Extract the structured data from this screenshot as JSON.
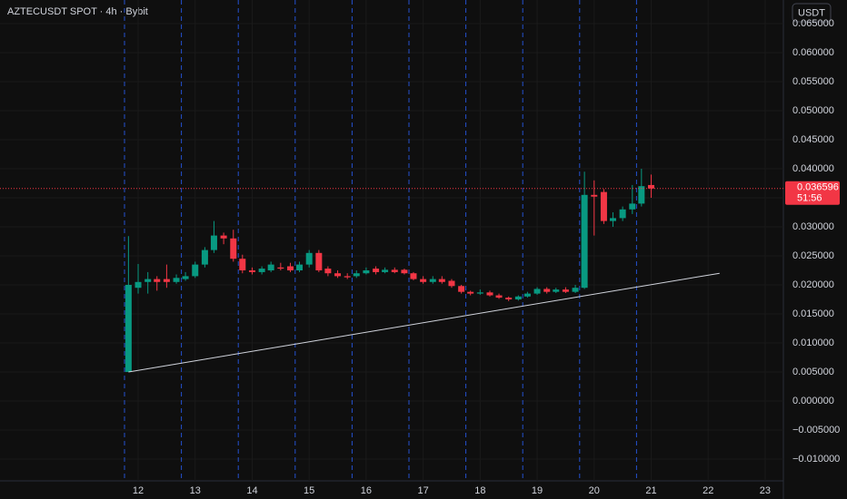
{
  "chart_data": {
    "type": "candlestick",
    "title": "AZTECUSDT SPOT · 4h · Bybit",
    "currency_button": "USDT",
    "x": [
      11.83,
      12,
      12.17,
      12.33,
      12.5,
      12.67,
      12.83,
      13,
      13.17,
      13.33,
      13.5,
      13.67,
      13.83,
      14,
      14.17,
      14.33,
      14.5,
      14.67,
      14.83,
      15,
      15.17,
      15.33,
      15.5,
      15.67,
      15.83,
      16,
      16.17,
      16.33,
      16.5,
      16.67,
      16.83,
      17,
      17.17,
      17.33,
      17.5,
      17.67,
      17.83,
      18,
      18.17,
      18.33,
      18.5,
      18.67,
      18.83,
      19,
      19.17,
      19.33,
      19.5,
      19.67,
      19.83,
      20,
      20.17,
      20.33,
      20.5,
      20.67,
      20.83,
      21
    ],
    "open": [
      0.005,
      0.0195,
      0.0205,
      0.021,
      0.021,
      0.0205,
      0.021,
      0.0215,
      0.0235,
      0.026,
      0.0285,
      0.028,
      0.0245,
      0.0225,
      0.0222,
      0.0225,
      0.023,
      0.0232,
      0.0225,
      0.0235,
      0.0255,
      0.0228,
      0.022,
      0.0215,
      0.0215,
      0.022,
      0.0228,
      0.0222,
      0.0226,
      0.0226,
      0.022,
      0.021,
      0.0205,
      0.021,
      0.0207,
      0.0198,
      0.0188,
      0.0185,
      0.0187,
      0.0182,
      0.0178,
      0.0175,
      0.018,
      0.0185,
      0.0193,
      0.0188,
      0.0192,
      0.0188,
      0.0195,
      0.0355,
      0.036,
      0.031,
      0.0315,
      0.033,
      0.034,
      0.0372
    ],
    "high": [
      0.0284,
      0.0236,
      0.0222,
      0.0215,
      0.0235,
      0.0218,
      0.0222,
      0.024,
      0.0265,
      0.031,
      0.029,
      0.0295,
      0.0252,
      0.023,
      0.0232,
      0.024,
      0.0238,
      0.0238,
      0.024,
      0.026,
      0.026,
      0.0232,
      0.0225,
      0.022,
      0.0225,
      0.023,
      0.0232,
      0.023,
      0.023,
      0.0228,
      0.0222,
      0.0215,
      0.0215,
      0.0215,
      0.021,
      0.02,
      0.019,
      0.0192,
      0.019,
      0.0185,
      0.018,
      0.0182,
      0.0188,
      0.0196,
      0.0196,
      0.0195,
      0.0196,
      0.02,
      0.0395,
      0.038,
      0.0365,
      0.0325,
      0.0335,
      0.0372,
      0.04,
      0.039
    ],
    "low": [
      0.005,
      0.0185,
      0.0185,
      0.019,
      0.0195,
      0.0202,
      0.0207,
      0.0212,
      0.023,
      0.0255,
      0.027,
      0.024,
      0.022,
      0.0218,
      0.0218,
      0.0222,
      0.0225,
      0.0222,
      0.0222,
      0.023,
      0.0222,
      0.0215,
      0.0212,
      0.021,
      0.0212,
      0.0218,
      0.0218,
      0.022,
      0.022,
      0.0218,
      0.0208,
      0.0202,
      0.0202,
      0.0202,
      0.0195,
      0.0185,
      0.0182,
      0.0183,
      0.018,
      0.0176,
      0.0172,
      0.0173,
      0.0178,
      0.0183,
      0.0185,
      0.0186,
      0.0186,
      0.0186,
      0.0193,
      0.0285,
      0.0305,
      0.03,
      0.031,
      0.0322,
      0.0335,
      0.035
    ],
    "close": [
      0.02,
      0.0205,
      0.021,
      0.0205,
      0.0205,
      0.0212,
      0.0215,
      0.0235,
      0.026,
      0.0285,
      0.028,
      0.0245,
      0.0225,
      0.0222,
      0.0228,
      0.0235,
      0.0228,
      0.0225,
      0.0235,
      0.0255,
      0.0225,
      0.022,
      0.0215,
      0.0213,
      0.022,
      0.0225,
      0.0222,
      0.0226,
      0.0222,
      0.022,
      0.021,
      0.0205,
      0.021,
      0.0205,
      0.0198,
      0.0188,
      0.0185,
      0.0187,
      0.0182,
      0.0178,
      0.0175,
      0.018,
      0.0185,
      0.0193,
      0.0188,
      0.0192,
      0.0188,
      0.0195,
      0.0355,
      0.0352,
      0.031,
      0.0315,
      0.033,
      0.034,
      0.037,
      0.036596
    ],
    "up_color": "#089981",
    "down_color": "#f23645",
    "xlim": [
      9.576,
      23.32
    ],
    "ylim": [
      -0.01375,
      0.0690625
    ],
    "xticks": [
      12,
      13,
      14,
      15,
      16,
      17,
      18,
      19,
      20,
      21,
      22,
      23
    ],
    "yticks": [
      {
        "value": 0.065,
        "label": "0.065000"
      },
      {
        "value": 0.06,
        "label": "0.060000"
      },
      {
        "value": 0.055,
        "label": "0.055000"
      },
      {
        "value": 0.05,
        "label": "0.050000"
      },
      {
        "value": 0.045,
        "label": "0.045000"
      },
      {
        "value": 0.04,
        "label": "0.040000"
      },
      {
        "value": 0.035,
        "label": "0.035000"
      },
      {
        "value": 0.03,
        "label": "0.030000"
      },
      {
        "value": 0.025,
        "label": "0.025000"
      },
      {
        "value": 0.02,
        "label": "0.020000"
      },
      {
        "value": 0.015,
        "label": "0.015000"
      },
      {
        "value": 0.01,
        "label": "0.010000"
      },
      {
        "value": 0.005,
        "label": "0.005000"
      },
      {
        "value": 0,
        "label": "0.000000"
      },
      {
        "value": -0.005,
        "label": "−0.005000"
      },
      {
        "value": -0.01,
        "label": "−0.010000"
      }
    ],
    "grid": true,
    "last_price": {
      "value": 0.036596,
      "label": "0.036596"
    },
    "countdown": "51:56",
    "trendline": {
      "x": [
        11.83,
        22.2
      ],
      "y": [
        0.005,
        0.022
      ]
    }
  }
}
